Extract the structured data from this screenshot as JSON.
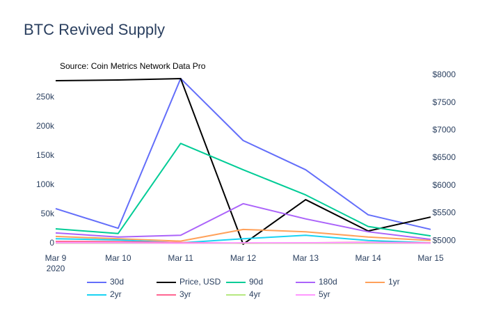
{
  "chart_data": {
    "type": "line",
    "title": "BTC Revived Supply",
    "annotation": "Source: Coin Metrics Network Data Pro",
    "x": [
      "2020-03-09",
      "2020-03-10",
      "2020-03-11",
      "2020-03-12",
      "2020-03-13",
      "2020-03-14",
      "2020-03-15"
    ],
    "xlim": [
      "2020-03-09",
      "2020-03-15"
    ],
    "xticks": [
      {
        "value": "2020-03-09",
        "label": "Mar 9"
      },
      {
        "value": "2020-03-10",
        "label": "Mar 10"
      },
      {
        "value": "2020-03-11",
        "label": "Mar 11"
      },
      {
        "value": "2020-03-12",
        "label": "Mar 12"
      },
      {
        "value": "2020-03-13",
        "label": "Mar 13"
      },
      {
        "value": "2020-03-14",
        "label": "Mar 14"
      },
      {
        "value": "2020-03-15",
        "label": "Mar 15"
      }
    ],
    "x_axis_year": "2020",
    "ylim": [
      -9500,
      289000
    ],
    "yticks": [
      0,
      {
        "value": 50000,
        "label": "50k"
      },
      {
        "value": 100000,
        "label": "100k"
      },
      {
        "value": 150000,
        "label": "150k"
      },
      {
        "value": 200000,
        "label": "200k"
      },
      {
        "value": 250000,
        "label": "250k"
      }
    ],
    "y2lim": [
      4850,
      8013
    ],
    "y2ticks": [
      {
        "value": 5000,
        "label": "$5000"
      },
      {
        "value": 5500,
        "label": "$5500"
      },
      {
        "value": 6000,
        "label": "$6000"
      },
      {
        "value": 6500,
        "label": "$6500"
      },
      {
        "value": 7000,
        "label": "$7000"
      },
      {
        "value": 7500,
        "label": "$7500"
      },
      {
        "value": 8000,
        "label": "$8000"
      }
    ],
    "grid": false,
    "series": [
      {
        "name": "30d",
        "color": "#636efa",
        "values": [
          59500,
          26000,
          282000,
          176000,
          126000,
          49000,
          24000
        ]
      },
      {
        "name": "Price, USD",
        "color": "#000000",
        "axis": "y2",
        "values": [
          7900,
          7912,
          7937,
          4937,
          5744,
          5176,
          5429
        ]
      },
      {
        "name": "90d",
        "color": "#00cc96",
        "values": [
          25000,
          17000,
          171000,
          126000,
          83000,
          29000,
          13000
        ]
      },
      {
        "name": "180d",
        "color": "#ab63fa",
        "values": [
          18000,
          11000,
          14000,
          68000,
          42000,
          20000,
          7000
        ]
      },
      {
        "name": "1yr",
        "color": "#ffa15a",
        "values": [
          12000,
          8000,
          4000,
          24000,
          20000,
          11000,
          5000
        ]
      },
      {
        "name": "2yr",
        "color": "#19d3f3",
        "values": [
          8000,
          6000,
          1000,
          8000,
          14000,
          5000,
          1000
        ]
      },
      {
        "name": "3yr",
        "color": "#ff6692",
        "values": [
          3500,
          3000,
          1500,
          500,
          1000,
          2000,
          1000
        ]
      },
      {
        "name": "4yr",
        "color": "#b6e880",
        "values": [
          500,
          500,
          500,
          500,
          500,
          500,
          500
        ]
      },
      {
        "name": "5yr",
        "color": "#ff97ff",
        "values": [
          1000,
          1000,
          500,
          1000,
          1000,
          1500,
          500
        ]
      }
    ]
  }
}
